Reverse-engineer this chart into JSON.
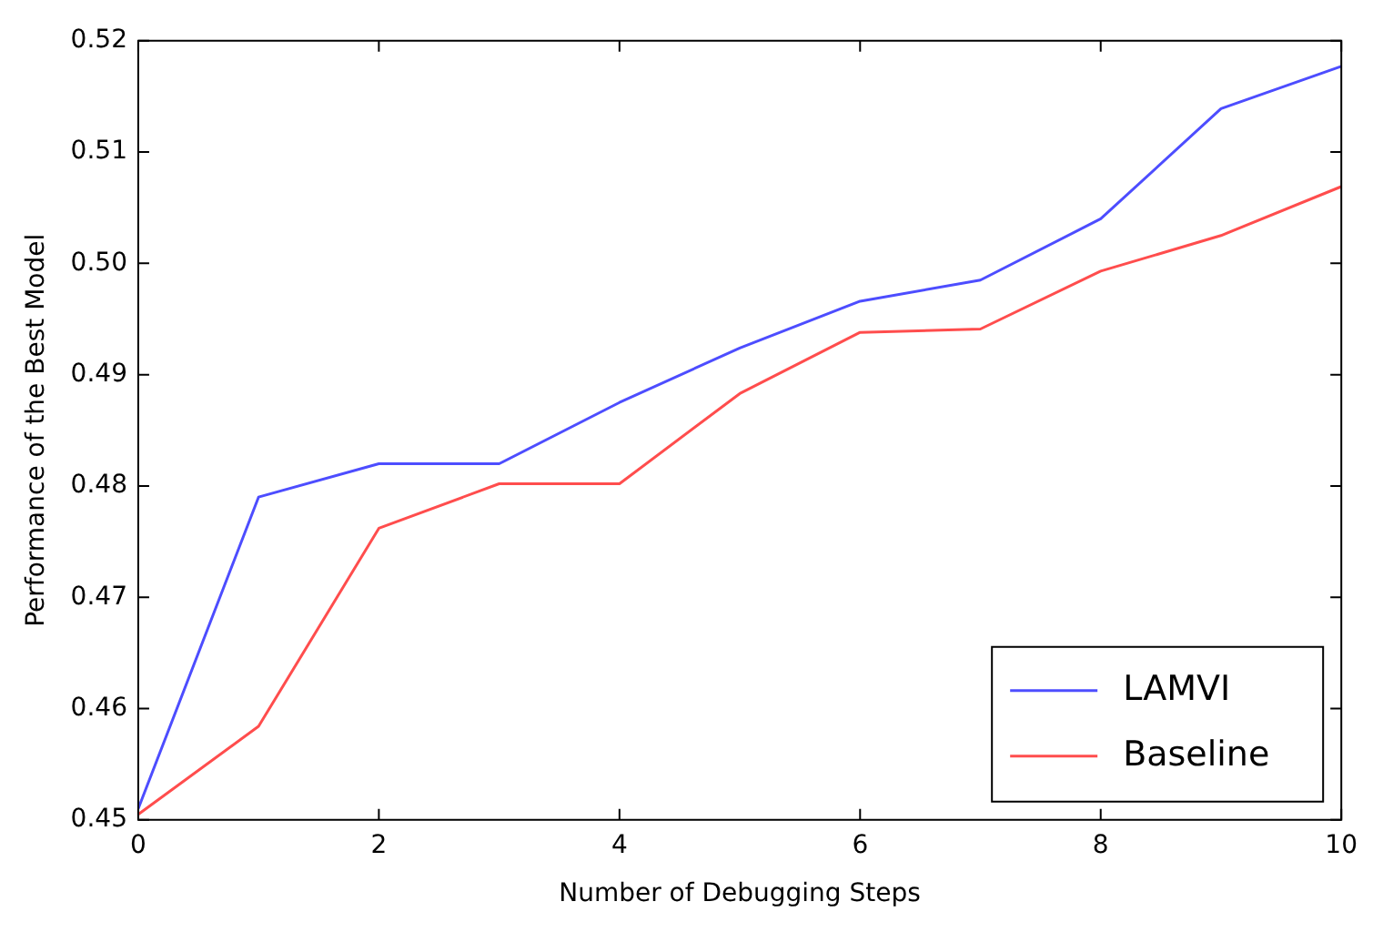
{
  "chart_data": {
    "type": "line",
    "xlabel": "Number of Debugging Steps",
    "ylabel": "Performance of the Best Model",
    "x": [
      0,
      1,
      2,
      3,
      4,
      5,
      6,
      7,
      8,
      9,
      10
    ],
    "series": [
      {
        "name": "LAMVI",
        "color": "#4d4dff",
        "values": [
          0.451,
          0.479,
          0.482,
          0.482,
          0.4875,
          0.4924,
          0.4966,
          0.4985,
          0.504,
          0.5139,
          0.5177
        ]
      },
      {
        "name": "Baseline",
        "color": "#ff4d4d",
        "values": [
          0.4505,
          0.4584,
          0.4762,
          0.4802,
          0.4802,
          0.4883,
          0.4938,
          0.4941,
          0.4993,
          0.5025,
          0.5069
        ]
      }
    ],
    "xlim": [
      0,
      10
    ],
    "xticks": [
      0,
      2,
      4,
      6,
      8,
      10
    ],
    "ylim": [
      0.45,
      0.52
    ],
    "yticks": [
      0.45,
      0.46,
      0.47,
      0.48,
      0.49,
      {
        "value": 0.5,
        "label": "0.50"
      },
      0.51,
      0.52
    ],
    "grid": false,
    "legend": "bottom right",
    "marker": "none",
    "line_style": "solid"
  }
}
